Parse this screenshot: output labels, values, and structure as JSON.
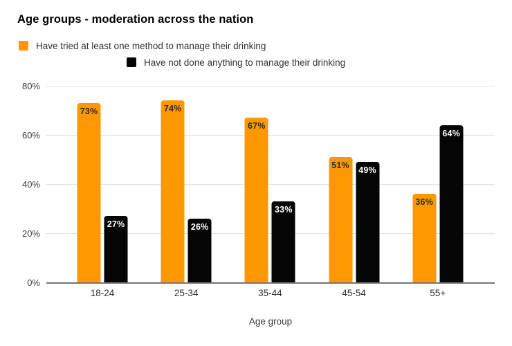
{
  "chart_data": {
    "type": "bar",
    "title": "Age groups - moderation across the nation",
    "xlabel": "Age group",
    "ylabel": "",
    "categories": [
      "18-24",
      "25-34",
      "35-44",
      "45-54",
      "55+"
    ],
    "series": [
      {
        "name": "Have tried at least one method to manage their drinking",
        "color": "#ff9800",
        "label_color": "#2b2b2b",
        "values": [
          73,
          74,
          67,
          51,
          36
        ]
      },
      {
        "name": "Have not done anything to manage their drinking",
        "color": "#050505",
        "label_color": "#ffffff",
        "values": [
          27,
          26,
          33,
          49,
          64
        ]
      }
    ],
    "ylim": [
      0,
      80
    ],
    "yticks": [
      0,
      20,
      40,
      60,
      80
    ],
    "ytick_suffix": "%",
    "value_suffix": "%",
    "grid": true,
    "legend_position": "top-left-wrapped",
    "colors": {
      "gridline": "#e0e0e0",
      "axis_baseline": "#757575",
      "title_text": "#000000",
      "legend_text": "#333333",
      "tick_text": "#3c3c3c"
    }
  }
}
